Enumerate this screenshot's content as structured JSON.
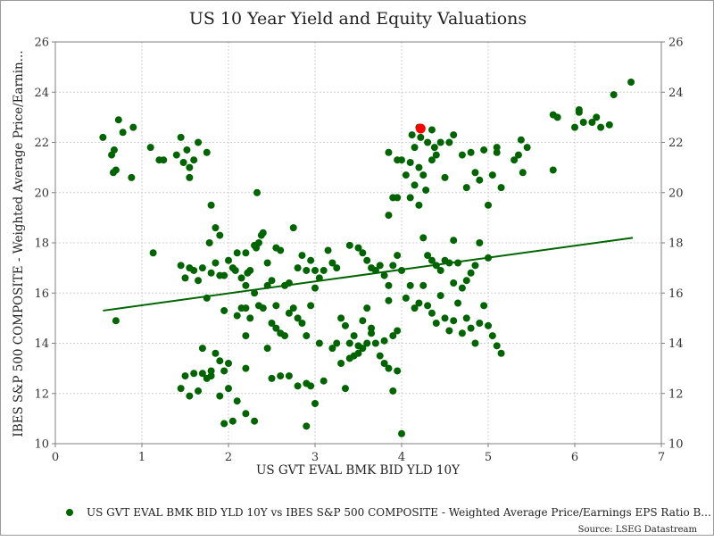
{
  "chart_data": {
    "type": "scatter",
    "title": "US 10 Year Yield and Equity Valuations",
    "xlabel": "US GVT EVAL BMK BID YLD 10Y",
    "ylabel": "IBES S&P 500 COMPOSITE - Weighted Average Price/Earnin...",
    "xlim": [
      0,
      7
    ],
    "ylim": [
      10,
      26
    ],
    "xticks": [
      "0",
      "1",
      "2",
      "3",
      "4",
      "5",
      "6",
      "7"
    ],
    "yticks": [
      "10",
      "12",
      "14",
      "16",
      "18",
      "20",
      "22",
      "24",
      "26"
    ],
    "grid": true,
    "legend_position": "bottom",
    "source": "Source: LSEG Datastream",
    "colors": {
      "series": "#006400",
      "highlight": "#ff0000",
      "trend": "#006400"
    },
    "series": [
      {
        "name": "US GVT EVAL BMK BID YLD 10Y vs IBES S&P 500 COMPOSITE - Weighted Average Price/Earnings EPS Ratio B...",
        "points": [
          [
            0.55,
            22.2
          ],
          [
            0.65,
            21.5
          ],
          [
            0.68,
            21.7
          ],
          [
            0.7,
            20.9
          ],
          [
            0.73,
            22.9
          ],
          [
            0.78,
            22.4
          ],
          [
            0.9,
            22.6
          ],
          [
            0.88,
            20.6
          ],
          [
            0.67,
            20.8
          ],
          [
            0.7,
            14.9
          ],
          [
            1.1,
            21.8
          ],
          [
            1.2,
            21.3
          ],
          [
            1.25,
            21.3
          ],
          [
            1.4,
            21.5
          ],
          [
            1.45,
            22.2
          ],
          [
            1.48,
            21.2
          ],
          [
            1.52,
            21.7
          ],
          [
            1.55,
            21.0
          ],
          [
            1.6,
            21.3
          ],
          [
            1.65,
            22.0
          ],
          [
            1.75,
            21.6
          ],
          [
            1.55,
            20.6
          ],
          [
            1.13,
            17.6
          ],
          [
            1.45,
            17.1
          ],
          [
            1.5,
            16.6
          ],
          [
            1.55,
            17.0
          ],
          [
            1.6,
            16.9
          ],
          [
            1.65,
            16.5
          ],
          [
            1.7,
            17.0
          ],
          [
            1.75,
            15.8
          ],
          [
            1.8,
            16.8
          ],
          [
            1.85,
            17.2
          ],
          [
            1.9,
            16.7
          ],
          [
            1.95,
            16.7
          ],
          [
            1.78,
            18.0
          ],
          [
            1.85,
            18.6
          ],
          [
            1.9,
            18.3
          ],
          [
            1.8,
            19.5
          ],
          [
            2.0,
            17.3
          ],
          [
            2.05,
            17.0
          ],
          [
            2.08,
            16.9
          ],
          [
            2.1,
            17.6
          ],
          [
            2.15,
            16.6
          ],
          [
            2.2,
            16.3
          ],
          [
            2.2,
            17.6
          ],
          [
            2.22,
            16.8
          ],
          [
            2.25,
            16.9
          ],
          [
            2.3,
            17.9
          ],
          [
            2.32,
            17.8
          ],
          [
            2.35,
            18.0
          ],
          [
            2.38,
            18.3
          ],
          [
            2.4,
            18.4
          ],
          [
            2.33,
            20.0
          ],
          [
            2.45,
            17.2
          ],
          [
            2.5,
            16.5
          ],
          [
            2.55,
            17.8
          ],
          [
            2.6,
            17.7
          ],
          [
            2.65,
            16.3
          ],
          [
            2.7,
            16.4
          ],
          [
            2.75,
            18.6
          ],
          [
            2.8,
            17.0
          ],
          [
            2.85,
            17.5
          ],
          [
            2.9,
            16.9
          ],
          [
            2.95,
            17.3
          ],
          [
            3.0,
            16.9
          ],
          [
            3.05,
            16.6
          ],
          [
            3.1,
            16.9
          ],
          [
            3.15,
            17.7
          ],
          [
            3.2,
            17.2
          ],
          [
            3.25,
            17.0
          ],
          [
            2.2,
            15.4
          ],
          [
            2.25,
            15.0
          ],
          [
            2.3,
            16.0
          ],
          [
            2.35,
            15.5
          ],
          [
            2.4,
            15.4
          ],
          [
            2.45,
            16.3
          ],
          [
            2.5,
            14.8
          ],
          [
            2.55,
            15.5
          ],
          [
            2.6,
            14.4
          ],
          [
            2.65,
            14.3
          ],
          [
            2.7,
            15.2
          ],
          [
            2.75,
            15.4
          ],
          [
            2.8,
            15.0
          ],
          [
            2.85,
            14.8
          ],
          [
            2.9,
            14.3
          ],
          [
            2.95,
            15.5
          ],
          [
            3.0,
            16.2
          ],
          [
            3.05,
            14.0
          ],
          [
            1.95,
            15.3
          ],
          [
            2.1,
            15.1
          ],
          [
            2.15,
            15.4
          ],
          [
            2.45,
            13.8
          ],
          [
            2.55,
            14.6
          ],
          [
            2.2,
            14.3
          ],
          [
            1.45,
            12.2
          ],
          [
            1.5,
            12.7
          ],
          [
            1.55,
            11.9
          ],
          [
            1.6,
            12.8
          ],
          [
            1.65,
            12.1
          ],
          [
            1.7,
            12.8
          ],
          [
            1.75,
            12.6
          ],
          [
            1.8,
            12.7
          ],
          [
            1.85,
            13.6
          ],
          [
            1.9,
            13.3
          ],
          [
            1.95,
            12.9
          ],
          [
            2.0,
            13.2
          ],
          [
            1.9,
            11.9
          ],
          [
            1.95,
            10.8
          ],
          [
            2.05,
            10.9
          ],
          [
            2.1,
            11.7
          ],
          [
            2.2,
            11.2
          ],
          [
            2.3,
            10.9
          ],
          [
            2.2,
            13.0
          ],
          [
            2.5,
            12.6
          ],
          [
            2.6,
            12.7
          ],
          [
            2.7,
            12.7
          ],
          [
            2.8,
            12.3
          ],
          [
            2.9,
            12.4
          ],
          [
            2.9,
            10.7
          ],
          [
            3.0,
            11.6
          ],
          [
            2.95,
            12.3
          ],
          [
            1.7,
            13.8
          ],
          [
            1.8,
            12.9
          ],
          [
            2.0,
            12.2
          ],
          [
            3.2,
            13.8
          ],
          [
            3.25,
            14.0
          ],
          [
            3.3,
            15.0
          ],
          [
            3.35,
            14.7
          ],
          [
            3.4,
            14.0
          ],
          [
            3.45,
            14.3
          ],
          [
            3.5,
            13.9
          ],
          [
            3.55,
            14.9
          ],
          [
            3.6,
            15.4
          ],
          [
            3.65,
            14.6
          ],
          [
            3.7,
            14.0
          ],
          [
            3.75,
            13.5
          ],
          [
            3.8,
            14.1
          ],
          [
            3.85,
            15.7
          ],
          [
            3.9,
            14.3
          ],
          [
            3.95,
            14.5
          ],
          [
            3.3,
            13.2
          ],
          [
            3.35,
            12.2
          ],
          [
            3.4,
            13.4
          ],
          [
            3.45,
            13.5
          ],
          [
            3.5,
            13.6
          ],
          [
            3.55,
            13.8
          ],
          [
            3.6,
            14.0
          ],
          [
            3.65,
            14.4
          ],
          [
            3.8,
            13.2
          ],
          [
            3.85,
            13.0
          ],
          [
            3.9,
            12.1
          ],
          [
            3.95,
            12.9
          ],
          [
            4.0,
            10.4
          ],
          [
            3.1,
            12.5
          ],
          [
            3.4,
            17.9
          ],
          [
            3.5,
            17.8
          ],
          [
            3.55,
            17.6
          ],
          [
            3.6,
            17.3
          ],
          [
            3.65,
            17.0
          ],
          [
            3.7,
            16.9
          ],
          [
            3.75,
            17.1
          ],
          [
            3.8,
            16.7
          ],
          [
            3.85,
            16.3
          ],
          [
            3.9,
            17.1
          ],
          [
            3.95,
            17.5
          ],
          [
            4.0,
            16.9
          ],
          [
            3.85,
            19.1
          ],
          [
            3.9,
            19.8
          ],
          [
            3.95,
            19.8
          ],
          [
            4.0,
            21.3
          ],
          [
            3.95,
            21.3
          ],
          [
            3.85,
            21.6
          ],
          [
            4.05,
            20.7
          ],
          [
            4.1,
            21.2
          ],
          [
            4.12,
            22.3
          ],
          [
            4.15,
            21.8
          ],
          [
            4.2,
            21.0
          ],
          [
            4.22,
            22.2
          ],
          [
            4.25,
            20.7
          ],
          [
            4.28,
            20.1
          ],
          [
            4.3,
            22.0
          ],
          [
            4.35,
            21.3
          ],
          [
            4.38,
            21.8
          ],
          [
            4.4,
            21.5
          ],
          [
            4.1,
            19.8
          ],
          [
            4.15,
            20.3
          ],
          [
            4.2,
            19.5
          ],
          [
            4.25,
            18.2
          ],
          [
            4.3,
            17.5
          ],
          [
            4.35,
            17.3
          ],
          [
            4.4,
            17.1
          ],
          [
            4.45,
            16.9
          ],
          [
            4.5,
            17.3
          ],
          [
            4.55,
            17.2
          ],
          [
            4.6,
            18.1
          ],
          [
            4.65,
            17.2
          ],
          [
            4.05,
            15.8
          ],
          [
            4.1,
            16.3
          ],
          [
            4.15,
            15.4
          ],
          [
            4.2,
            15.6
          ],
          [
            4.25,
            16.3
          ],
          [
            4.3,
            15.5
          ],
          [
            4.35,
            15.2
          ],
          [
            4.4,
            14.8
          ],
          [
            4.45,
            15.9
          ],
          [
            4.5,
            15.0
          ],
          [
            4.55,
            14.5
          ],
          [
            4.6,
            14.9
          ],
          [
            4.65,
            15.6
          ],
          [
            4.7,
            14.4
          ],
          [
            4.75,
            15.0
          ],
          [
            4.8,
            14.6
          ],
          [
            4.85,
            14.0
          ],
          [
            4.9,
            14.8
          ],
          [
            4.95,
            15.5
          ],
          [
            5.0,
            14.7
          ],
          [
            5.05,
            14.3
          ],
          [
            5.1,
            13.9
          ],
          [
            5.15,
            13.6
          ],
          [
            4.6,
            16.4
          ],
          [
            4.5,
            20.6
          ],
          [
            4.55,
            22.0
          ],
          [
            4.6,
            22.3
          ],
          [
            4.7,
            21.5
          ],
          [
            4.75,
            20.2
          ],
          [
            4.8,
            21.6
          ],
          [
            4.85,
            20.8
          ],
          [
            4.9,
            20.5
          ],
          [
            4.95,
            21.7
          ],
          [
            5.0,
            19.5
          ],
          [
            5.05,
            20.7
          ],
          [
            5.1,
            21.8
          ],
          [
            5.1,
            21.6
          ],
          [
            5.15,
            20.2
          ],
          [
            4.2,
            22.6
          ],
          [
            4.35,
            22.5
          ],
          [
            4.45,
            22.0
          ],
          [
            5.3,
            21.3
          ],
          [
            5.35,
            21.5
          ],
          [
            5.38,
            22.1
          ],
          [
            5.4,
            20.8
          ],
          [
            5.45,
            21.8
          ],
          [
            4.85,
            17.1
          ],
          [
            4.9,
            18.0
          ],
          [
            5.0,
            17.4
          ],
          [
            4.7,
            16.2
          ],
          [
            4.75,
            16.5
          ],
          [
            4.8,
            16.8
          ],
          [
            5.75,
            23.1
          ],
          [
            5.8,
            23.0
          ],
          [
            5.75,
            20.9
          ],
          [
            6.0,
            22.6
          ],
          [
            6.05,
            23.2
          ],
          [
            6.1,
            22.8
          ],
          [
            6.2,
            22.8
          ],
          [
            6.25,
            23.0
          ],
          [
            6.3,
            22.6
          ],
          [
            6.4,
            22.7
          ],
          [
            6.45,
            23.9
          ],
          [
            6.65,
            24.4
          ],
          [
            6.05,
            23.3
          ]
        ]
      }
    ],
    "highlight_point": [
      4.22,
      22.55
    ],
    "trend_line": {
      "x": [
        0.55,
        6.67
      ],
      "y": [
        15.3,
        18.2
      ]
    }
  }
}
